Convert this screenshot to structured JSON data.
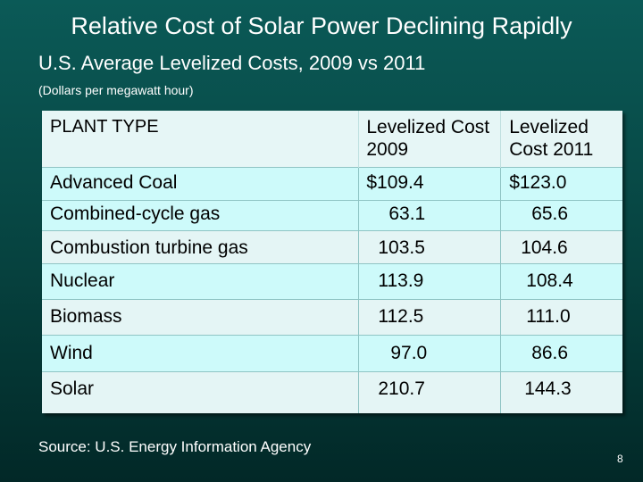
{
  "slide": {
    "title": "Relative Cost of Solar Power Declining Rapidly",
    "subtitle": "U.S. Average Levelized Costs, 2009 vs 2011",
    "units_note": "(Dollars per megawatt hour)",
    "source": "Source: U.S. Energy Information Agency",
    "page_number": "8"
  },
  "table": {
    "headers": {
      "plant_type": "PLANT TYPE",
      "cost_2009": "Levelized Cost 2009",
      "cost_2011": "Levelized Cost 2011"
    },
    "rows": [
      {
        "plant": "Advanced Coal",
        "cost_2009": "$109.4",
        "cost_2011": "$123.0"
      },
      {
        "plant": "Combined-cycle gas",
        "cost_2009": "63.1",
        "cost_2011": "65.6"
      },
      {
        "plant": "Combustion turbine gas",
        "cost_2009": "103.5",
        "cost_2011": "104.6"
      },
      {
        "plant": "Nuclear",
        "cost_2009": "113.9",
        "cost_2011": "108.4"
      },
      {
        "plant": "Biomass",
        "cost_2009": "112.5",
        "cost_2011": "111.0"
      },
      {
        "plant": "Wind",
        "cost_2009": "97.0",
        "cost_2011": "86.6"
      },
      {
        "plant": "Solar",
        "cost_2009": "210.7",
        "cost_2011": "144.3"
      }
    ]
  },
  "colors": {
    "background": "#06423f",
    "table_header": "#e6f6f6",
    "table_row_cyan": "#cdfafa",
    "table_row_light": "#e4f5f5"
  }
}
